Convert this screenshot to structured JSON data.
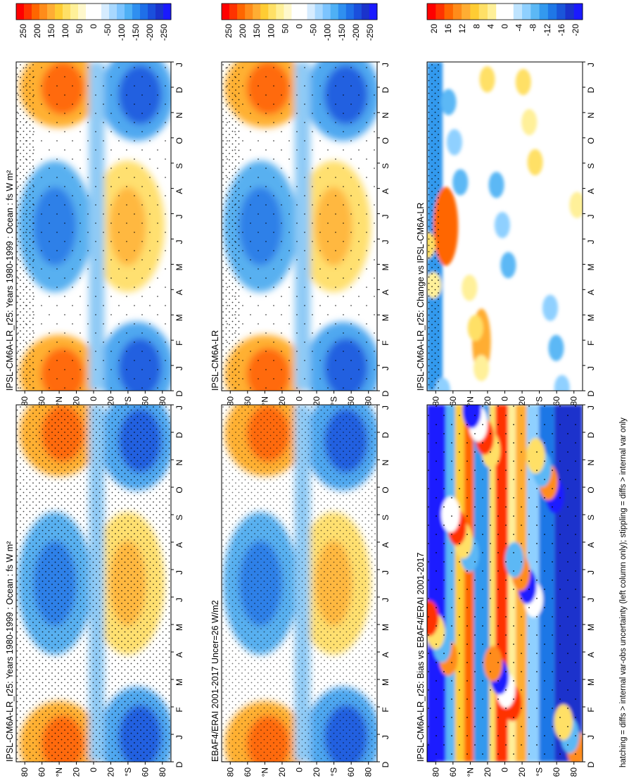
{
  "footer_note": "hatching = diffs > internal var-obs uncertainty (left column only); stippling = diffs > internal var only",
  "months": [
    "D",
    "J",
    "F",
    "M",
    "A",
    "M",
    "J",
    "J",
    "A",
    "S",
    "O",
    "N",
    "D",
    "J"
  ],
  "lat_labels": [
    "80",
    "60",
    "°N",
    "20",
    "0",
    "20",
    "°S",
    "60",
    "80"
  ],
  "colorbar_big": [
    "250",
    "200",
    "150",
    "100",
    "50",
    "0",
    "-50",
    "-100",
    "-150",
    "-200",
    "-250"
  ],
  "colorbar_small": [
    "20",
    "16",
    "12",
    "8",
    "4",
    "0",
    "-4",
    "-8",
    "-12",
    "-16",
    "-20"
  ],
  "panels": [
    {
      "id": "model-r25-left",
      "title": "IPSL-CM6A-LR_r25: Years 1980-1999 : Ocean : fs W m²",
      "type": "model",
      "cb": "big"
    },
    {
      "id": "obs",
      "title": "EBAF4/ERAI 2001-2017 Uncer=26 W/m2",
      "type": "obs",
      "cb": "big"
    },
    {
      "id": "bias",
      "title": "IPSL-CM6A-LR_r25: Bias vs EBAF4/ERAI 2001-2017",
      "type": "bias",
      "cb": "small"
    },
    {
      "id": "model-r25-right",
      "title": "IPSL-CM6A-LR_r25: Years 1980-1999 : Ocean : fs W m²",
      "type": "model",
      "cb": "big"
    },
    {
      "id": "model-mean",
      "title": "IPSL-CM6A-LR",
      "type": "model",
      "cb": "big"
    },
    {
      "id": "change",
      "title": "IPSL-CM6A-LR_r25: Change vs IPSL-CM6A-LR",
      "type": "change",
      "cb": "small"
    }
  ],
  "chart_data": {
    "type": "heatmap",
    "x_axis": "latitude 90N to 90S",
    "y_axis": "month (Dec to Jan, 14 steps)",
    "months": [
      "D",
      "J",
      "F",
      "M",
      "A",
      "M",
      "J",
      "J",
      "A",
      "S",
      "O",
      "N",
      "D",
      "J"
    ],
    "units_big": "W m-2",
    "colorbar_big_range": [
      -250,
      250
    ],
    "colorbar_small_range": [
      -20,
      20
    ],
    "colors_big": [
      "#ff0000",
      "#ff3300",
      "#ff6600",
      "#ff8c1a",
      "#ffad33",
      "#ffcc33",
      "#ffe066",
      "#fff099",
      "#fff8cc",
      "#ffffff",
      "#ffffff",
      "#d6ecff",
      "#a8d8ff",
      "#7cc4ff",
      "#4fb0f5",
      "#2f8ff0",
      "#1f6fe8",
      "#1a4fdc",
      "#1a33cc",
      "#1a1aff"
    ],
    "colors_small": [
      "#ff0000",
      "#ff3300",
      "#ff6600",
      "#ff8c1a",
      "#ffad33",
      "#ffcc33",
      "#ffe066",
      "#fff099",
      "#ffffff",
      "#ffffff",
      "#bfe4ff",
      "#8fd0ff",
      "#5cb8f5",
      "#3399ee",
      "#1f77e6",
      "#1a55d9",
      "#1a33cc",
      "#1a1aff"
    ]
  }
}
